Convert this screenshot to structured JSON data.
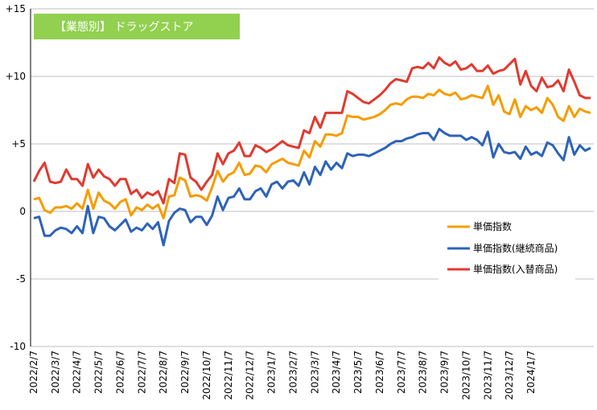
{
  "chart_data": {
    "type": "line",
    "title": "【業態別】 ドラッグストア",
    "title_bg_color": "#92d050",
    "xlabel": "",
    "ylabel": "",
    "ylim": [
      -10,
      15
    ],
    "y_ticks": [
      {
        "value": -10,
        "label": "-10"
      },
      {
        "value": -5,
        "label": "-5"
      },
      {
        "value": 0,
        "label": "0"
      },
      {
        "value": 5,
        "label": "+5"
      },
      {
        "value": 10,
        "label": "+10"
      },
      {
        "value": 15,
        "label": "+15"
      }
    ],
    "grid": "horizontal",
    "legend_position": "right-middle",
    "x_tick_labels": [
      "2022/2/7",
      "2022/3/7",
      "2022/4/7",
      "2022/5/7",
      "2022/6/7",
      "2022/7/7",
      "2022/8/7",
      "2022/9/7",
      "2022/10/7",
      "2022/11/7",
      "2022/12/7",
      "2023/1/7",
      "2023/2/7",
      "2023/3/7",
      "2023/4/7",
      "2023/5/7",
      "2023/6/7",
      "2023/7/7",
      "2023/8/7",
      "2023/9/7",
      "2023/10/7",
      "2023/11/7",
      "2023/12/7",
      "2024/1/7"
    ],
    "x_tick_index": [
      0,
      4,
      8,
      12,
      16,
      20,
      24,
      28,
      32,
      36,
      40,
      44,
      48,
      52,
      56,
      60,
      64,
      68,
      72,
      76,
      80,
      84,
      88,
      92
    ],
    "series": [
      {
        "name": "単価指数",
        "color": "#f59c00",
        "values": [
          0.9,
          1.0,
          0.1,
          -0.1,
          0.3,
          0.3,
          0.4,
          0.2,
          0.6,
          0.2,
          1.6,
          0.2,
          1.4,
          0.8,
          0.6,
          0.2,
          0.7,
          0.9,
          -0.3,
          0.3,
          0.1,
          0.5,
          0.2,
          0.5,
          -0.5,
          1.1,
          1.2,
          2.5,
          2.3,
          1.1,
          1.2,
          1.1,
          0.8,
          1.8,
          3.0,
          2.2,
          2.7,
          2.9,
          3.6,
          2.7,
          2.8,
          3.4,
          3.3,
          2.9,
          3.5,
          3.7,
          3.9,
          3.6,
          3.5,
          3.4,
          4.5,
          4.0,
          5.2,
          4.8,
          5.7,
          5.7,
          5.6,
          5.8,
          7.1,
          7.0,
          7.0,
          6.8,
          6.9,
          7.0,
          7.2,
          7.5,
          7.9,
          8.0,
          7.9,
          8.3,
          8.5,
          8.5,
          8.4,
          8.7,
          8.6,
          9.0,
          8.7,
          8.6,
          8.8,
          8.3,
          8.4,
          8.6,
          8.5,
          8.4,
          9.3,
          7.9,
          8.6,
          7.4,
          7.2,
          8.3,
          7.0,
          7.8,
          7.5,
          7.7,
          7.3,
          8.4,
          7.9,
          7.0,
          6.7,
          7.8,
          7.0,
          7.6,
          7.4,
          7.3
        ]
      },
      {
        "name": "単価指数(継続商品)",
        "color": "#2e63b8",
        "values": [
          -0.5,
          -0.4,
          -1.8,
          -1.8,
          -1.4,
          -1.2,
          -1.3,
          -1.6,
          -1.1,
          -1.6,
          0.4,
          -1.6,
          -0.4,
          -0.5,
          -1.1,
          -1.4,
          -1.0,
          -0.6,
          -1.5,
          -1.2,
          -1.4,
          -0.9,
          -1.3,
          -0.8,
          -2.5,
          -0.7,
          -0.1,
          0.2,
          0.1,
          -0.8,
          -0.4,
          -0.4,
          -1.0,
          -0.3,
          1.1,
          0.1,
          1.0,
          1.1,
          1.7,
          0.9,
          0.9,
          1.5,
          1.7,
          1.1,
          2.0,
          2.2,
          1.7,
          2.2,
          2.3,
          1.9,
          2.9,
          2.0,
          3.3,
          2.7,
          3.7,
          3.1,
          3.6,
          3.2,
          4.3,
          4.1,
          4.2,
          4.2,
          4.1,
          4.3,
          4.5,
          4.7,
          5.0,
          5.2,
          5.2,
          5.4,
          5.5,
          5.7,
          5.8,
          5.8,
          5.3,
          6.1,
          5.8,
          5.6,
          5.6,
          5.6,
          5.3,
          5.5,
          5.3,
          4.9,
          5.9,
          4.0,
          5.0,
          4.4,
          4.3,
          4.4,
          3.9,
          4.8,
          4.2,
          4.4,
          4.1,
          5.1,
          4.9,
          4.3,
          3.8,
          5.5,
          4.2,
          4.9,
          4.5,
          4.7
        ]
      },
      {
        "name": "単価指数(入替商品)",
        "color": "#e03a2f",
        "values": [
          2.2,
          3.0,
          3.6,
          2.2,
          2.1,
          2.2,
          3.1,
          2.4,
          2.4,
          1.9,
          3.5,
          2.5,
          3.1,
          2.6,
          2.4,
          1.9,
          2.4,
          2.4,
          1.3,
          1.6,
          1.0,
          1.4,
          1.2,
          1.5,
          0.6,
          2.4,
          2.1,
          4.3,
          4.2,
          2.5,
          2.2,
          1.6,
          2.2,
          2.7,
          4.3,
          3.5,
          4.3,
          4.5,
          5.1,
          4.1,
          4.1,
          4.9,
          4.7,
          4.4,
          4.6,
          4.9,
          5.2,
          4.9,
          4.8,
          4.7,
          6.0,
          5.8,
          7.0,
          6.2,
          7.3,
          7.3,
          7.3,
          7.3,
          8.9,
          8.7,
          8.4,
          8.1,
          8.0,
          8.3,
          8.6,
          9.0,
          9.5,
          9.8,
          9.7,
          9.6,
          10.6,
          10.7,
          10.6,
          11.0,
          10.6,
          11.4,
          11.0,
          10.8,
          11.1,
          10.5,
          10.6,
          10.9,
          10.4,
          10.4,
          10.8,
          10.2,
          10.4,
          10.5,
          10.9,
          11.3,
          9.4,
          10.4,
          9.3,
          8.9,
          9.9,
          9.2,
          9.3,
          9.7,
          8.9,
          10.5,
          9.6,
          8.6,
          8.4,
          8.4
        ]
      }
    ]
  }
}
